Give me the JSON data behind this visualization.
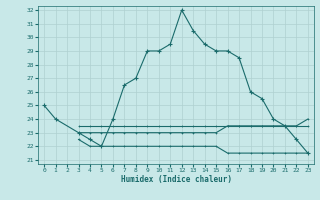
{
  "xlabel": "Humidex (Indice chaleur)",
  "background_color": "#c8e8e8",
  "grid_color": "#afd0d0",
  "line_color": "#1a6b6b",
  "ylim_min": 21,
  "ylim_max": 32,
  "xlim_min": -0.5,
  "xlim_max": 23.5,
  "yticks": [
    21,
    22,
    23,
    24,
    25,
    26,
    27,
    28,
    29,
    30,
    31,
    32
  ],
  "xticks": [
    0,
    1,
    2,
    3,
    4,
    5,
    6,
    7,
    8,
    9,
    10,
    11,
    12,
    13,
    14,
    15,
    16,
    17,
    18,
    19,
    20,
    21,
    22,
    23
  ],
  "main_x": [
    0,
    1,
    3,
    4,
    5,
    6,
    7,
    8,
    9,
    10,
    11,
    12,
    13,
    14,
    15,
    16,
    17,
    18,
    19,
    20,
    21,
    22,
    23
  ],
  "main_y": [
    25.0,
    24.0,
    23.0,
    22.5,
    22.0,
    24.0,
    26.5,
    27.0,
    29.0,
    29.0,
    29.5,
    32.0,
    30.5,
    29.5,
    29.0,
    29.0,
    28.5,
    26.0,
    25.5,
    24.0,
    23.5,
    22.5,
    21.5
  ],
  "flat1_x": [
    3,
    4,
    5,
    6,
    7,
    8,
    9,
    10,
    11,
    12,
    13,
    14,
    15,
    16,
    17,
    18,
    19,
    20,
    21,
    22,
    23
  ],
  "flat1_y": [
    23.0,
    23.0,
    23.0,
    23.0,
    23.0,
    23.0,
    23.0,
    23.0,
    23.0,
    23.0,
    23.0,
    23.0,
    23.0,
    23.5,
    23.5,
    23.5,
    23.5,
    23.5,
    23.5,
    23.5,
    24.0
  ],
  "flat2_x": [
    3,
    4,
    5,
    6,
    7,
    8,
    9,
    10,
    11,
    12,
    13,
    14,
    15,
    16,
    17,
    18,
    19,
    20,
    21,
    22,
    23
  ],
  "flat2_y": [
    23.5,
    23.5,
    23.5,
    23.5,
    23.5,
    23.5,
    23.5,
    23.5,
    23.5,
    23.5,
    23.5,
    23.5,
    23.5,
    23.5,
    23.5,
    23.5,
    23.5,
    23.5,
    23.5,
    23.5,
    23.5
  ],
  "flat3_x": [
    3,
    4,
    5,
    6,
    7,
    8,
    9,
    10,
    11,
    12,
    13,
    14,
    15,
    16,
    17,
    18,
    19,
    20,
    21,
    22,
    23
  ],
  "flat3_y": [
    22.5,
    22.0,
    22.0,
    22.0,
    22.0,
    22.0,
    22.0,
    22.0,
    22.0,
    22.0,
    22.0,
    22.0,
    22.0,
    21.5,
    21.5,
    21.5,
    21.5,
    21.5,
    21.5,
    21.5,
    21.5
  ]
}
